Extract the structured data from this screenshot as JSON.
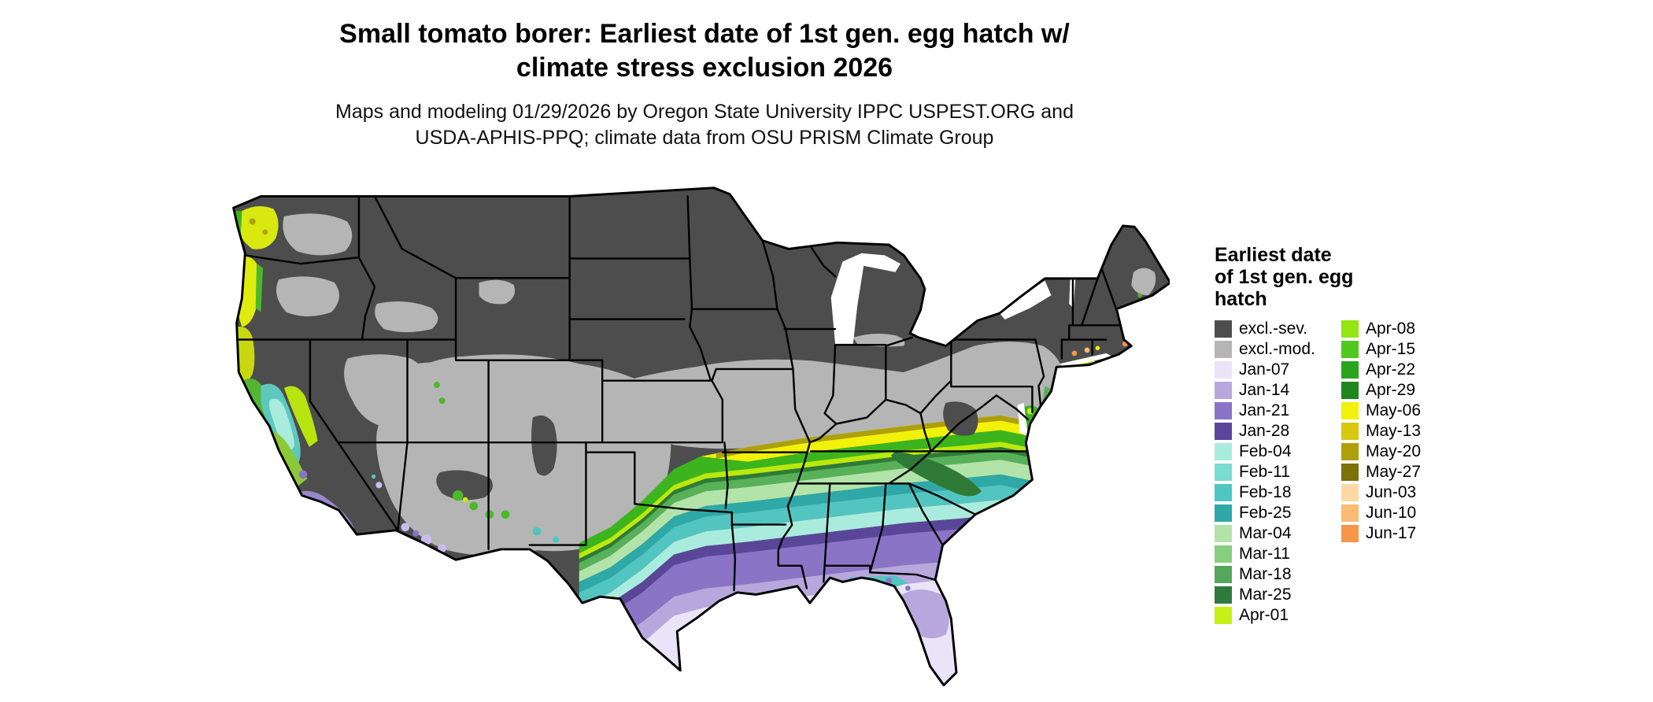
{
  "title": {
    "line1": "Small tomato borer: Earliest date of 1st gen. egg hatch w/",
    "line2": "climate stress exclusion 2026"
  },
  "subtitle": {
    "line1": "Maps and modeling 01/29/2026 by Oregon State University IPPC USPEST.ORG and",
    "line2": "USDA-APHIS-PPQ; climate data from OSU PRISM Climate Group"
  },
  "legend": {
    "title_lines": [
      "Earliest date",
      "of 1st gen. egg",
      "hatch"
    ],
    "column1": [
      {
        "label": "excl.-sev.",
        "color": "#4d4d4d"
      },
      {
        "label": "excl.-mod.",
        "color": "#b5b5b5"
      },
      {
        "label": "Jan-07",
        "color": "#eae4f8"
      },
      {
        "label": "Jan-14",
        "color": "#b7a7dd"
      },
      {
        "label": "Jan-21",
        "color": "#8a74c6"
      },
      {
        "label": "Jan-28",
        "color": "#5a4699"
      },
      {
        "label": "Feb-04",
        "color": "#a9ecdd"
      },
      {
        "label": "Feb-11",
        "color": "#79ddd2"
      },
      {
        "label": "Feb-18",
        "color": "#4fc6c1"
      },
      {
        "label": "Feb-25",
        "color": "#2fa8a8"
      },
      {
        "label": "Mar-04",
        "color": "#b2e4aa"
      },
      {
        "label": "Mar-11",
        "color": "#85cf7f"
      },
      {
        "label": "Mar-18",
        "color": "#54a75b"
      },
      {
        "label": "Mar-25",
        "color": "#2e7a3c"
      },
      {
        "label": "Apr-01",
        "color": "#c6f116"
      }
    ],
    "column2": [
      {
        "label": "Apr-08",
        "color": "#95e414"
      },
      {
        "label": "Apr-15",
        "color": "#4fc91d"
      },
      {
        "label": "Apr-22",
        "color": "#28a51b"
      },
      {
        "label": "Apr-29",
        "color": "#1d861d"
      },
      {
        "label": "May-06",
        "color": "#f1f10a"
      },
      {
        "label": "May-13",
        "color": "#d8c90e"
      },
      {
        "label": "May-20",
        "color": "#ada00c"
      },
      {
        "label": "May-27",
        "color": "#7b720a"
      },
      {
        "label": "Jun-03",
        "color": "#fcd9a4"
      },
      {
        "label": "Jun-10",
        "color": "#fbbb70"
      },
      {
        "label": "Jun-17",
        "color": "#f79648"
      }
    ]
  }
}
